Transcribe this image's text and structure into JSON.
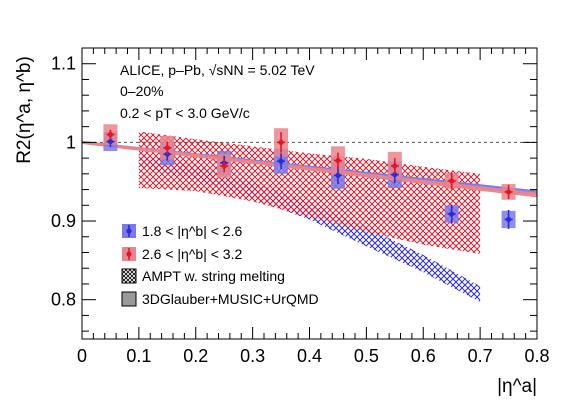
{
  "chart_data": {
    "type": "scatter",
    "xlabel": "|η^a|",
    "ylabel": "R2(η^a, η^b)",
    "xlim": [
      0,
      0.8
    ],
    "ylim": [
      0.75,
      1.12
    ],
    "x_ticks": [
      "0",
      "0.1",
      "0.2",
      "0.3",
      "0.4",
      "0.5",
      "0.6",
      "0.7",
      "0.8"
    ],
    "y_ticks": [
      "0.8",
      "0.9",
      "1",
      "1.1"
    ],
    "annotations": [
      "ALICE, p–Pb, √sNN = 5.02 TeV",
      "0–20%",
      "0.2 < pT < 3.0 GeV/c"
    ],
    "legend_position": "bottom-left",
    "colors": {
      "blue": "#2b2bd9",
      "blue_sys": "#7a7ae6",
      "red": "#e0182a",
      "red_sys": "#e9858c",
      "grey": "#9a9a9a"
    },
    "reference_line": {
      "y": 1.0,
      "style": "dashed"
    },
    "series": [
      {
        "name": "1.8 < |η^b| < 2.6",
        "color": "#2b2bd9",
        "x": [
          0.05,
          0.15,
          0.25,
          0.35,
          0.45,
          0.55,
          0.65,
          0.75
        ],
        "y": [
          1.001,
          0.985,
          0.974,
          0.976,
          0.958,
          0.959,
          0.909,
          0.902
        ],
        "stat_err": [
          0.007,
          0.008,
          0.009,
          0.01,
          0.011,
          0.011,
          0.012,
          0.012
        ],
        "sys_err": [
          0.012,
          0.014,
          0.015,
          0.016,
          0.017,
          0.017,
          0.011,
          0.011
        ]
      },
      {
        "name": "2.6 < |η^b| < 3.2",
        "color": "#e0182a",
        "x": [
          0.05,
          0.15,
          0.25,
          0.35,
          0.45,
          0.55,
          0.65,
          0.75
        ],
        "y": [
          1.01,
          0.993,
          0.97,
          1.0,
          0.977,
          0.97,
          0.951,
          0.937
        ],
        "stat_err": [
          0.006,
          0.008,
          0.008,
          0.013,
          0.01,
          0.01,
          0.011,
          0.009
        ],
        "sys_err": [
          0.013,
          0.015,
          0.015,
          0.018,
          0.018,
          0.018,
          0.01,
          0.01
        ]
      }
    ],
    "models": [
      {
        "name": "AMPT w. string melting",
        "style": "hatched",
        "bands": [
          {
            "color": "#2b2bd9",
            "x": [
              0.1,
              0.2,
              0.3,
              0.4,
              0.5,
              0.6,
              0.7
            ],
            "low": [
              0.969,
              0.952,
              0.928,
              0.902,
              0.868,
              0.835,
              0.797
            ],
            "high": [
              0.986,
              0.971,
              0.949,
              0.924,
              0.892,
              0.857,
              0.817
            ]
          },
          {
            "color": "#e0182a",
            "x": [
              0.1,
              0.2,
              0.3,
              0.4,
              0.5,
              0.6,
              0.7
            ],
            "low": [
              0.942,
              0.938,
              0.925,
              0.905,
              0.886,
              0.87,
              0.858
            ],
            "high": [
              1.014,
              1.004,
              0.995,
              0.986,
              0.979,
              0.969,
              0.96
            ]
          }
        ]
      },
      {
        "name": "3DGlauber+MUSIC+UrQMD",
        "style": "filled",
        "bands": [
          {
            "color": "#7a7ae6",
            "x": [
              0,
              0.8
            ],
            "low": [
              0.999,
              0.934
            ],
            "high": [
              1.001,
              0.938
            ]
          },
          {
            "color": "#e9858c",
            "x": [
              0,
              0.8
            ],
            "low": [
              0.999,
              0.931
            ],
            "high": [
              1.001,
              0.935
            ]
          }
        ]
      }
    ]
  }
}
